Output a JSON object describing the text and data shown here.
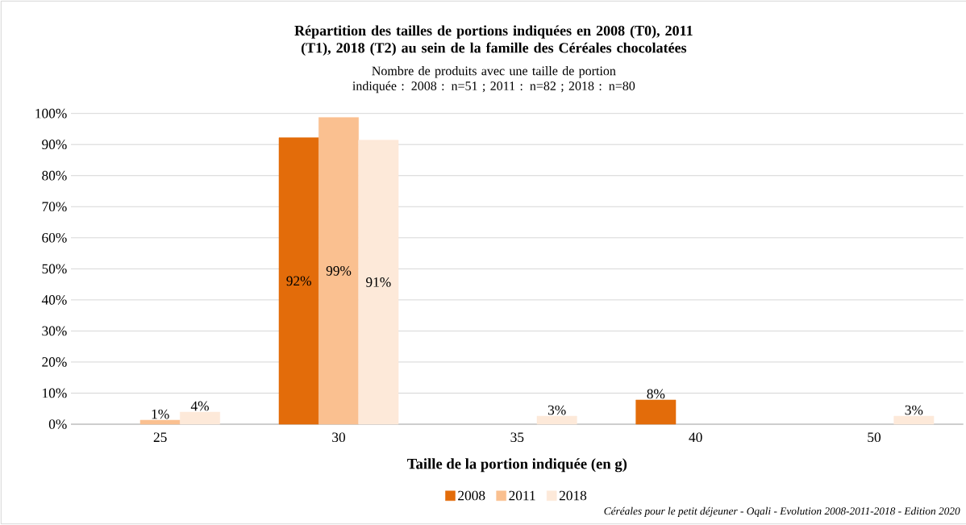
{
  "chart_data": {
    "type": "bar",
    "title": "Répartition des tailles de portions indiquées en 2008 (T0), 2011 (T1), 2018 (T2) au sein de la famille des Céréales chocolatées",
    "subtitle": "Nombre de produits avec une taille de portion indiquée : 2008 : n=51 ; 2011 : n=82 ; 2018 : n=80",
    "xlabel": "Taille de la portion indiquée (en g)",
    "categories": [
      "25",
      "30",
      "35",
      "40",
      "50"
    ],
    "series": [
      {
        "name": "2008",
        "color": "#e36c0a",
        "values": [
          null,
          92.2,
          null,
          7.8,
          null
        ],
        "value_labels": [
          null,
          "92%",
          null,
          "8%",
          null
        ]
      },
      {
        "name": "2011",
        "color": "#fac090",
        "values": [
          1.3,
          98.7,
          null,
          null,
          null
        ],
        "value_labels": [
          "1%",
          "99%",
          null,
          null,
          null
        ]
      },
      {
        "name": "2018",
        "color": "#fde9d9",
        "values": [
          3.9,
          91.4,
          2.6,
          null,
          2.6
        ],
        "value_labels": [
          "4%",
          "91%",
          "3%",
          null,
          "3%"
        ]
      }
    ],
    "ylim": [
      0,
      100
    ],
    "yticks": [
      {
        "value": 0,
        "label": "0%"
      },
      {
        "value": 10,
        "label": "10%"
      },
      {
        "value": 20,
        "label": "20%"
      },
      {
        "value": 30,
        "label": "30%"
      },
      {
        "value": 40,
        "label": "40%"
      },
      {
        "value": 50,
        "label": "50%"
      },
      {
        "value": 60,
        "label": "60%"
      },
      {
        "value": 70,
        "label": "70%"
      },
      {
        "value": 80,
        "label": "80%"
      },
      {
        "value": 90,
        "label": "90%"
      },
      {
        "value": 100,
        "label": "100%"
      }
    ],
    "grid": "y",
    "legend": "bottom",
    "annotations": [
      "Céréales pour le petit déjeuner - Oqali - Evolution 2008-2011-2018 - Edition 2020"
    ]
  }
}
